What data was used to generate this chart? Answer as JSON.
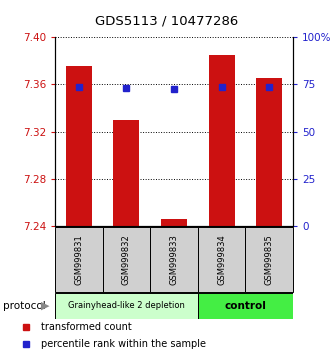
{
  "title": "GDS5113 / 10477286",
  "samples": [
    "GSM999831",
    "GSM999832",
    "GSM999833",
    "GSM999834",
    "GSM999835"
  ],
  "bar_bottom": 7.24,
  "bar_tops": [
    7.375,
    7.33,
    7.246,
    7.385,
    7.365
  ],
  "percentile_values": [
    73.5,
    73.0,
    72.5,
    73.5,
    73.5
  ],
  "ylim_left": [
    7.24,
    7.4
  ],
  "ylim_right": [
    0,
    100
  ],
  "yticks_left": [
    7.24,
    7.28,
    7.32,
    7.36,
    7.4
  ],
  "yticks_right": [
    0,
    25,
    50,
    75,
    100
  ],
  "ytick_labels_right": [
    "0",
    "25",
    "50",
    "75",
    "100%"
  ],
  "bar_color": "#cc1111",
  "square_color": "#2222cc",
  "group1_label": "Grainyhead-like 2 depletion",
  "group2_label": "control",
  "group1_color": "#ccffcc",
  "group2_color": "#44ee44",
  "group1_indices": [
    0,
    1,
    2
  ],
  "group2_indices": [
    3,
    4
  ],
  "protocol_label": "protocol",
  "legend_red": "transformed count",
  "legend_blue": "percentile rank within the sample",
  "bar_width": 0.55,
  "tick_label_color_left": "#cc1111",
  "tick_label_color_right": "#2222cc",
  "title_fontsize": 9.5,
  "tick_fontsize": 7.5,
  "sample_fontsize": 6,
  "legend_fontsize": 7
}
